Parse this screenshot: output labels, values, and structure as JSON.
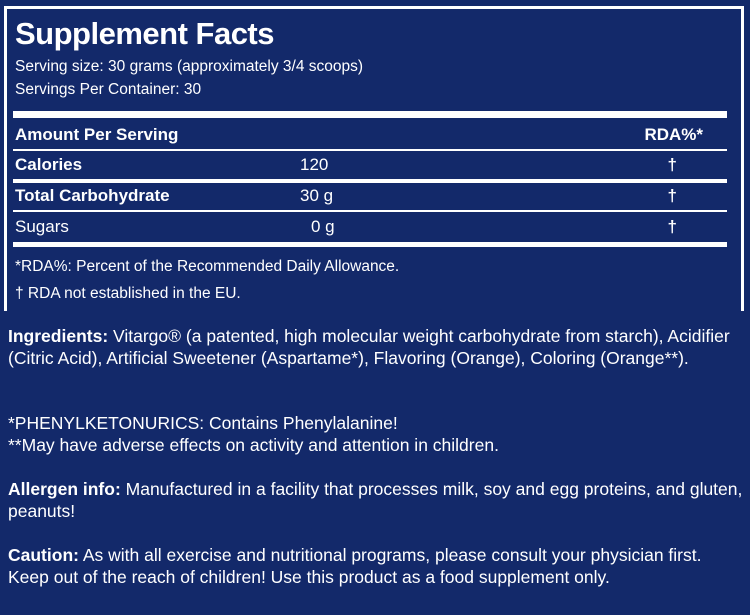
{
  "title": "Supplement Facts",
  "serving_size": "Serving size: 30 grams (approximately 3/4 scoops)",
  "servings_per_container": "Servings Per Container: 30",
  "table": {
    "header_label": "Amount Per Serving",
    "header_rda": "RDA%*",
    "rows": [
      {
        "label": "Calories",
        "amount": "120",
        "rda": "†"
      },
      {
        "label": "Total Carbohydrate",
        "amount": "30 g",
        "rda": "†"
      },
      {
        "label": "Sugars",
        "amount": "0 g",
        "rda": "†"
      }
    ]
  },
  "footnotes": [
    "*RDA%: Percent of the Recommended Daily Allowance.",
    "† RDA not established in the EU."
  ],
  "ingredients": {
    "label": "Ingredients:",
    "text": " Vitargo® (a patented, high molecular weight carbohydrate from starch), Acidifier (Citric Acid), Artificial Sweetener (Aspartame*), Flavoring (Orange), Coloring (Orange**)."
  },
  "warnings": [
    "*PHENYLKETONURICS: Contains Phenylalanine!",
    "**May have adverse effects on activity and attention in children."
  ],
  "allergen": {
    "label": "Allergen info:",
    "text": " Manufactured in a facility that processes milk, soy and egg proteins, and gluten, peanuts!"
  },
  "caution": {
    "label": "Caution:",
    "text": " As with all exercise and nutritional programs, please consult your physician first. Keep out of the reach of children! Use this product as a food supplement only."
  }
}
